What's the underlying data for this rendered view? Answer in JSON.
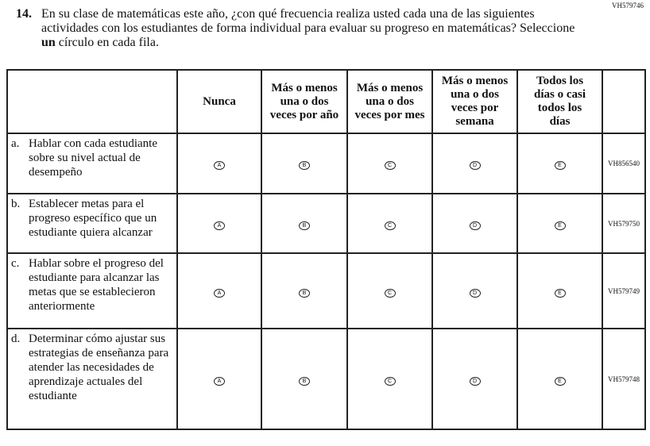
{
  "question": {
    "id": "VH579746",
    "number": "14.",
    "text_before": "En su clase de matemáticas este año, ¿con qué frecuencia realiza usted cada una de las siguientes actividades con los estudiantes de forma individual para evaluar su progreso en matemáticas? Seleccione ",
    "text_bold": "un",
    "text_after": " círculo en cada fila."
  },
  "columns": [
    "Nunca",
    "Más o menos una o dos veces por año",
    "Más o menos una o dos veces por mes",
    "Más o menos una o dos veces por semana",
    "Todos los días o casi todos los días"
  ],
  "bubbles": [
    "A",
    "B",
    "C",
    "D",
    "E"
  ],
  "rows": [
    {
      "letter": "a.",
      "text": "Hablar con cada estudiante sobre su nivel actual de desempeño",
      "code": "VH856540"
    },
    {
      "letter": "b.",
      "text": "Establecer metas para el progreso específico que un estudiante quiera alcanzar",
      "code": "VH579750"
    },
    {
      "letter": "c.",
      "text": "Hablar sobre el progreso del estudiante para alcanzar las metas que se establecieron anteriormente",
      "code": "VH579749"
    },
    {
      "letter": "d.",
      "text": "Determinar cómo ajustar sus estrategias de enseñanza para atender las necesidades de aprendizaje actuales del estudiante",
      "code": "VH579748"
    }
  ]
}
